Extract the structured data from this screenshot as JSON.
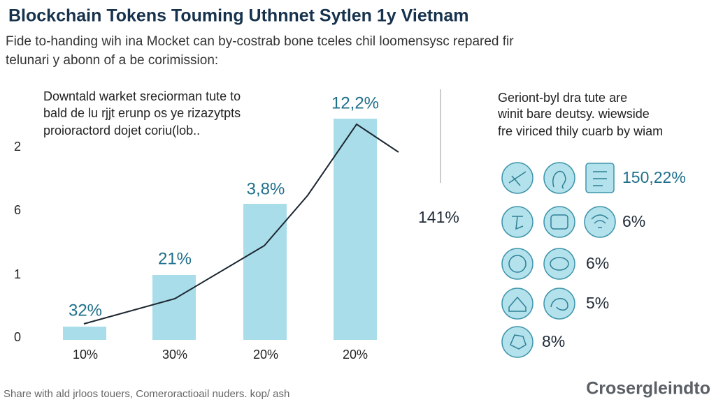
{
  "header": {
    "title": "Blockchain Tokens Touming Uthnnet Sytlen 1y Vietnam",
    "subtitle": [
      "Fide to-handing wih ina Mocket can by-costrab bone tceles chil loomensysc repared fir",
      "telunari y abonn of a be corimission:"
    ]
  },
  "chart": {
    "note": [
      "Downtald warket sreciorman tute to",
      "bald de lu rjjt erunp os ye rizazytpts",
      "proioractord dojet coriu(lob.."
    ],
    "axis_labels": [
      "2",
      "6",
      "1",
      "0"
    ],
    "bar_labels": [
      "32%",
      "21%",
      "3,8%",
      "12,2%"
    ],
    "categories": [
      "10%",
      "30%",
      "20%",
      "20%"
    ],
    "side_label": "141%"
  },
  "panel": {
    "note": [
      "Geriont-byl dra tute are",
      "winit bare deutsy. wiewside",
      "fre viriced thily cuarb by wiam"
    ],
    "stats": [
      "150,22%",
      "6%",
      "6%",
      "5%",
      "8%"
    ]
  },
  "footer": {
    "caption": "Share with ald jrloos touers, Comeroractioail nuders. kop/ ash",
    "brand": "Crosergleindto"
  }
}
